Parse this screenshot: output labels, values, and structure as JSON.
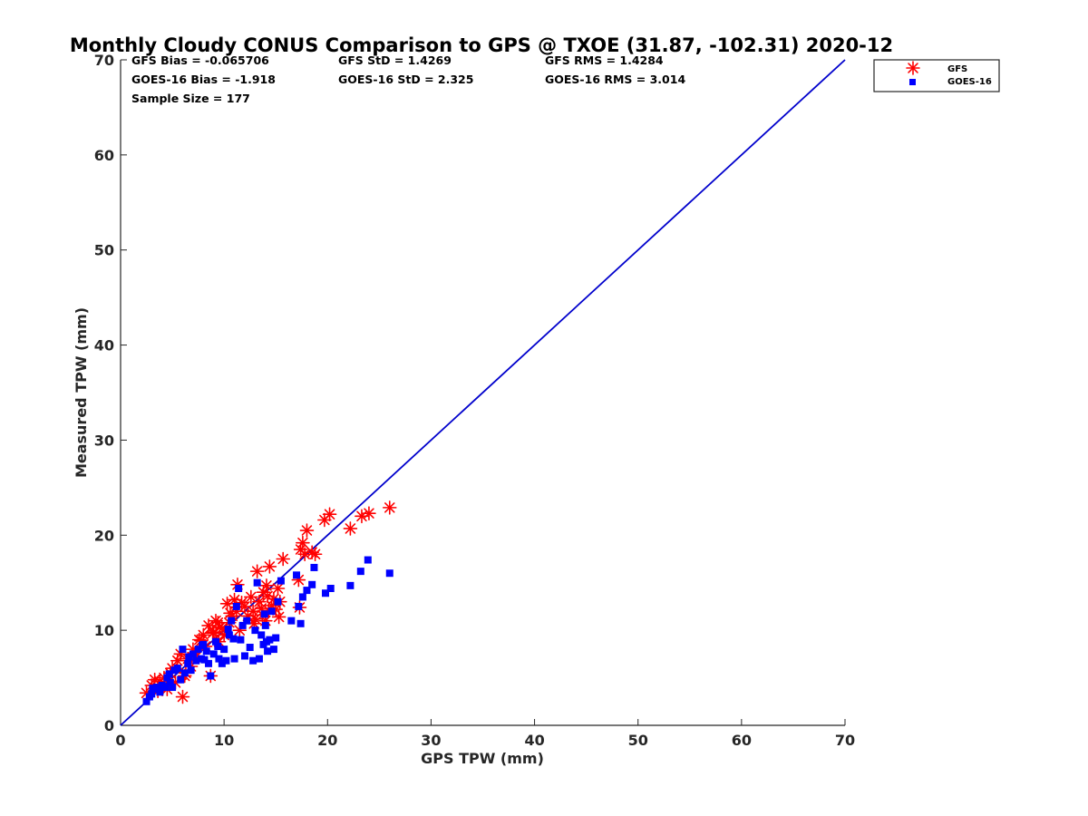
{
  "chart_data": {
    "type": "scatter",
    "title": "Monthly Cloudy CONUS Comparison to GPS @ TXOE (31.87, -102.31) 2020-12",
    "xlabel": "GPS TPW (mm)",
    "ylabel": "Measured TPW (mm)",
    "xlim": [
      0,
      70
    ],
    "ylim": [
      0,
      70
    ],
    "xticks": [
      "0",
      "10",
      "20",
      "30",
      "40",
      "50",
      "60",
      "70"
    ],
    "yticks": [
      "0",
      "10",
      "20",
      "30",
      "40",
      "50",
      "60",
      "70"
    ],
    "grid": false,
    "legend_position": "top-right",
    "reference_line": {
      "name": "1:1 line",
      "color": "#0000cc",
      "x": [
        0,
        70
      ],
      "y": [
        0,
        70
      ]
    },
    "stats": {
      "gfs_bias": "GFS Bias = -0.065706",
      "goes_bias": "GOES-16 Bias = -1.918",
      "sample_size": "Sample Size = 177",
      "gfs_std": "GFS StD = 1.4269",
      "goes_std": "GOES-16 StD = 2.325",
      "gfs_rms": "GFS RMS = 1.4284",
      "goes_rms": "GOES-16 RMS = 3.014"
    },
    "series": [
      {
        "name": "GFS",
        "marker": "asterisk",
        "color": "#ff0000",
        "points": [
          [
            2.5,
            3.4
          ],
          [
            3.0,
            4.2
          ],
          [
            3.3,
            4.8
          ],
          [
            3.6,
            3.6
          ],
          [
            4.0,
            4.3
          ],
          [
            4.2,
            5.0
          ],
          [
            4.5,
            3.8
          ],
          [
            4.8,
            5.5
          ],
          [
            5.0,
            6.0
          ],
          [
            5.3,
            4.5
          ],
          [
            5.5,
            6.8
          ],
          [
            5.8,
            7.5
          ],
          [
            6.0,
            3.0
          ],
          [
            6.2,
            5.2
          ],
          [
            6.5,
            7.0
          ],
          [
            6.8,
            6.2
          ],
          [
            7.0,
            8.0
          ],
          [
            7.3,
            7.2
          ],
          [
            7.6,
            9.0
          ],
          [
            8.0,
            9.5
          ],
          [
            8.2,
            8.3
          ],
          [
            8.5,
            10.5
          ],
          [
            8.7,
            5.2
          ],
          [
            9.0,
            9.8
          ],
          [
            9.2,
            11.0
          ],
          [
            9.5,
            8.8
          ],
          [
            9.8,
            10.2
          ],
          [
            10.0,
            9.5
          ],
          [
            10.3,
            12.8
          ],
          [
            10.5,
            10.8
          ],
          [
            10.8,
            11.5
          ],
          [
            11.0,
            13.2
          ],
          [
            11.2,
            12.0
          ],
          [
            11.3,
            14.8
          ],
          [
            11.5,
            10.0
          ],
          [
            12.0,
            12.5
          ],
          [
            12.3,
            11.5
          ],
          [
            12.6,
            13.5
          ],
          [
            12.8,
            12.0
          ],
          [
            13.0,
            11.2
          ],
          [
            13.2,
            16.2
          ],
          [
            13.4,
            13.0
          ],
          [
            13.6,
            12.3
          ],
          [
            13.8,
            14.0
          ],
          [
            14.0,
            11.0
          ],
          [
            14.2,
            13.6
          ],
          [
            14.4,
            16.7
          ],
          [
            14.6,
            12.6
          ],
          [
            14.8,
            13.3
          ],
          [
            15.0,
            12.2
          ],
          [
            15.2,
            14.4
          ],
          [
            15.4,
            13.0
          ],
          [
            15.7,
            17.5
          ],
          [
            17.2,
            15.3
          ],
          [
            17.3,
            12.4
          ],
          [
            17.4,
            18.5
          ],
          [
            17.6,
            19.2
          ],
          [
            17.8,
            18.0
          ],
          [
            18.0,
            20.5
          ],
          [
            18.5,
            18.2
          ],
          [
            18.8,
            18.0
          ],
          [
            19.7,
            21.6
          ],
          [
            20.2,
            22.2
          ],
          [
            22.2,
            20.7
          ],
          [
            23.3,
            22.0
          ],
          [
            24.0,
            22.3
          ],
          [
            26.0,
            22.9
          ],
          [
            9.4,
            10.8
          ],
          [
            10.6,
            11.8
          ],
          [
            11.7,
            12.9
          ],
          [
            14.3,
            12.1
          ],
          [
            13.7,
            11.6
          ],
          [
            7.8,
            8.9
          ],
          [
            8.9,
            9.7
          ],
          [
            12.9,
            10.7
          ],
          [
            15.3,
            11.4
          ],
          [
            6.3,
            5.5
          ],
          [
            3.8,
            4.6
          ],
          [
            9.6,
            10.3
          ],
          [
            14.1,
            14.7
          ]
        ]
      },
      {
        "name": "GOES-16",
        "marker": "square",
        "color": "#0000ff",
        "points": [
          [
            2.5,
            2.5
          ],
          [
            2.8,
            3.0
          ],
          [
            3.0,
            3.3
          ],
          [
            3.3,
            3.8
          ],
          [
            3.5,
            4.0
          ],
          [
            3.8,
            3.5
          ],
          [
            4.0,
            4.2
          ],
          [
            4.3,
            4.0
          ],
          [
            4.5,
            5.0
          ],
          [
            4.8,
            4.5
          ],
          [
            5.0,
            4.0
          ],
          [
            5.2,
            5.8
          ],
          [
            5.5,
            6.0
          ],
          [
            5.8,
            4.8
          ],
          [
            6.0,
            8.0
          ],
          [
            6.2,
            5.5
          ],
          [
            6.5,
            6.5
          ],
          [
            6.8,
            5.8
          ],
          [
            7.0,
            7.5
          ],
          [
            7.3,
            6.8
          ],
          [
            7.5,
            8.0
          ],
          [
            7.8,
            7.0
          ],
          [
            8.0,
            8.5
          ],
          [
            8.3,
            7.8
          ],
          [
            8.5,
            6.5
          ],
          [
            8.7,
            5.2
          ],
          [
            9.0,
            7.5
          ],
          [
            9.2,
            8.8
          ],
          [
            9.5,
            7.0
          ],
          [
            9.8,
            6.5
          ],
          [
            10.0,
            8.0
          ],
          [
            10.2,
            6.8
          ],
          [
            10.5,
            9.5
          ],
          [
            10.7,
            11.0
          ],
          [
            11.0,
            7.0
          ],
          [
            11.2,
            12.5
          ],
          [
            11.4,
            14.4
          ],
          [
            11.6,
            9.0
          ],
          [
            11.8,
            10.5
          ],
          [
            12.2,
            11.0
          ],
          [
            12.5,
            8.2
          ],
          [
            12.8,
            6.8
          ],
          [
            13.0,
            10.0
          ],
          [
            13.2,
            15.0
          ],
          [
            13.4,
            7.0
          ],
          [
            13.6,
            9.5
          ],
          [
            13.8,
            8.5
          ],
          [
            14.0,
            10.5
          ],
          [
            14.2,
            7.8
          ],
          [
            14.4,
            9.0
          ],
          [
            14.6,
            12.0
          ],
          [
            14.8,
            8.0
          ],
          [
            15.0,
            9.2
          ],
          [
            15.2,
            13.0
          ],
          [
            15.5,
            15.2
          ],
          [
            16.5,
            11.0
          ],
          [
            17.0,
            15.8
          ],
          [
            17.2,
            12.5
          ],
          [
            17.4,
            10.7
          ],
          [
            17.6,
            13.5
          ],
          [
            18.0,
            14.2
          ],
          [
            18.5,
            14.8
          ],
          [
            18.7,
            16.6
          ],
          [
            19.8,
            13.9
          ],
          [
            20.3,
            14.4
          ],
          [
            22.2,
            14.7
          ],
          [
            23.2,
            16.2
          ],
          [
            23.9,
            17.4
          ],
          [
            26.0,
            16.0
          ],
          [
            9.4,
            8.3
          ],
          [
            10.9,
            9.1
          ],
          [
            12.0,
            7.3
          ],
          [
            14.1,
            8.8
          ],
          [
            13.9,
            11.7
          ],
          [
            8.1,
            6.9
          ],
          [
            6.6,
            7.2
          ],
          [
            4.7,
            5.4
          ],
          [
            3.1,
            3.9
          ],
          [
            7.9,
            8.4
          ],
          [
            10.4,
            10.1
          ]
        ]
      }
    ]
  }
}
